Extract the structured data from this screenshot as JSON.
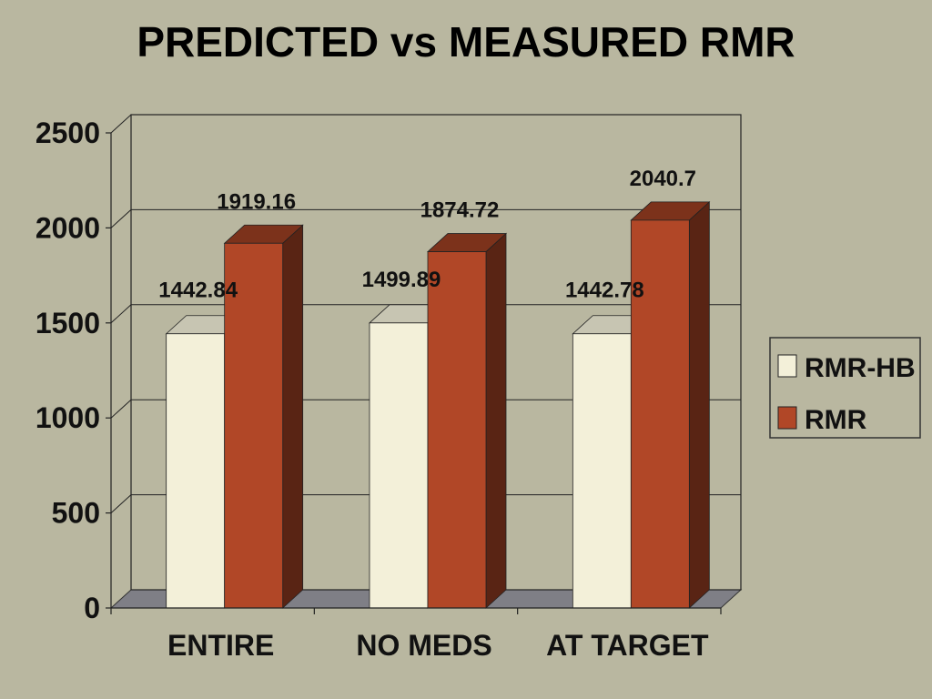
{
  "chart_data": {
    "type": "bar",
    "title": "PREDICTED vs MEASURED RMR",
    "categories": [
      "ENTIRE",
      "NO MEDS",
      "AT TARGET"
    ],
    "series": [
      {
        "name": "RMR-HB",
        "values": [
          1442.84,
          1499.89,
          1442.78
        ],
        "color": "#f3f0d9",
        "labels": [
          "1442.84",
          "1499.89",
          "1442.78"
        ]
      },
      {
        "name": "RMR",
        "values": [
          1919.16,
          1874.72,
          2040.7
        ],
        "color": "#b14727",
        "labels": [
          "1919.16",
          "1874.72",
          "2040.7"
        ]
      }
    ],
    "ylim": [
      0,
      2500
    ],
    "yticks": [
      "0",
      "500",
      "1000",
      "1500",
      "2000",
      "2500"
    ],
    "grid": true,
    "legend_position": "right",
    "style_3d": true
  }
}
